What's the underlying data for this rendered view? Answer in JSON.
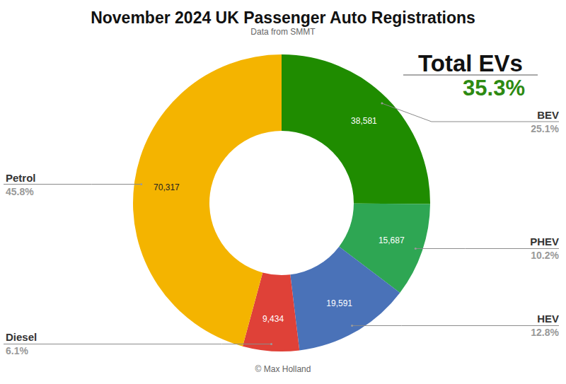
{
  "chart_data": {
    "type": "donut",
    "title": "November 2024 UK Passenger Auto Registrations",
    "subtitle": "Data from SMMT",
    "categories": [
      "BEV",
      "PHEV",
      "HEV",
      "Diesel",
      "Petrol"
    ],
    "values": [
      38581,
      15687,
      19591,
      9434,
      70317
    ],
    "value_labels": [
      "38,581",
      "15,687",
      "19,591",
      "9,434",
      "70,317"
    ],
    "percent_labels": [
      "25.1%",
      "10.2%",
      "12.8%",
      "6.1%",
      "45.8%"
    ],
    "colors": [
      "#1f8c00",
      "#2ea653",
      "#4a72b8",
      "#df4138",
      "#f4b400"
    ],
    "data_labels": true,
    "annotations": [
      "Total EVs",
      "35.3%",
      "© Max Holland"
    ]
  }
}
